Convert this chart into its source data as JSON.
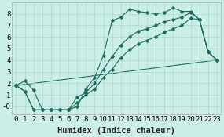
{
  "xlabel": "Humidex (Indice chaleur)",
  "background_color": "#cceee8",
  "grid_color": "#aad8d0",
  "line_color": "#1a6b5a",
  "marker_color": "#1a6b5a",
  "xlim": [
    -0.5,
    23.5
  ],
  "ylim": [
    -0.7,
    9.0
  ],
  "xticks": [
    0,
    1,
    2,
    3,
    4,
    5,
    6,
    7,
    8,
    9,
    10,
    11,
    12,
    13,
    14,
    15,
    16,
    17,
    18,
    19,
    20,
    21,
    22,
    23
  ],
  "yticks": [
    0,
    1,
    2,
    3,
    4,
    5,
    6,
    7,
    8
  ],
  "ytick_labels": [
    "-0",
    "1",
    "2",
    "3",
    "4",
    "5",
    "6",
    "7",
    "8"
  ],
  "series1_x": [
    0,
    1,
    2,
    3,
    4,
    5,
    6,
    7,
    8,
    9,
    10,
    11,
    12,
    13,
    14,
    15,
    16,
    17,
    18,
    19,
    20,
    21,
    22,
    23
  ],
  "series1_y": [
    1.8,
    2.2,
    1.4,
    -0.3,
    -0.3,
    -0.3,
    -0.3,
    0.0,
    1.5,
    2.5,
    4.4,
    7.4,
    7.7,
    8.4,
    8.2,
    8.1,
    8.0,
    8.1,
    8.5,
    8.2,
    8.2,
    7.5,
    4.7,
    4.0
  ],
  "series2_x": [
    0,
    1,
    2,
    3,
    4,
    5,
    6,
    7,
    8,
    9,
    10,
    11,
    12,
    13,
    14,
    15,
    16,
    17,
    18,
    19,
    20,
    21,
    22,
    23
  ],
  "series2_y": [
    1.8,
    1.3,
    -0.3,
    -0.3,
    -0.3,
    -0.3,
    -0.3,
    0.8,
    1.2,
    2.0,
    3.2,
    4.3,
    5.3,
    6.0,
    6.5,
    6.7,
    7.0,
    7.3,
    7.5,
    7.7,
    8.1,
    7.5,
    4.7,
    4.0
  ],
  "series3_x": [
    0,
    1,
    2,
    3,
    4,
    5,
    6,
    7,
    8,
    9,
    10,
    11,
    12,
    13,
    14,
    15,
    16,
    17,
    18,
    19,
    20,
    21,
    22,
    23
  ],
  "series3_y": [
    1.8,
    1.3,
    -0.3,
    -0.3,
    -0.3,
    -0.3,
    -0.3,
    0.3,
    1.0,
    1.5,
    2.5,
    3.2,
    4.2,
    4.9,
    5.4,
    5.7,
    6.0,
    6.4,
    6.7,
    7.0,
    7.6,
    7.5,
    4.7,
    4.0
  ],
  "series4_x": [
    0,
    23
  ],
  "series4_y": [
    1.8,
    4.0
  ],
  "xlabel_fontsize": 7.5,
  "tick_fontsize": 6.5
}
